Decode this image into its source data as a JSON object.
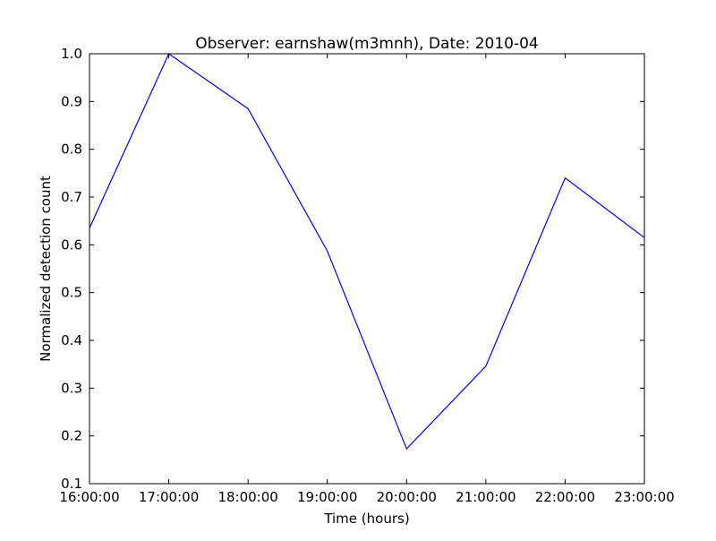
{
  "chart_data": {
    "type": "line",
    "title": "Observer: earnshaw(m3mnh), Date: 2010-04",
    "xlabel": "Time (hours)",
    "ylabel": "Normalized detection count",
    "x": [
      "16:00:00",
      "17:00:00",
      "18:00:00",
      "19:00:00",
      "20:00:00",
      "21:00:00",
      "22:00:00",
      "23:00:00"
    ],
    "series": [
      {
        "values": [
          0.635,
          1.0,
          0.885,
          0.587,
          0.173,
          0.346,
          0.74,
          0.615
        ],
        "color": "#0000ff"
      }
    ],
    "ylim": [
      0.1,
      1.0
    ],
    "yticks": [
      "0.1",
      "0.2",
      "0.3",
      "0.4",
      "0.5",
      "0.6",
      "0.7",
      "0.8",
      "0.9",
      "1.0"
    ],
    "grid": false,
    "legend": "none"
  }
}
